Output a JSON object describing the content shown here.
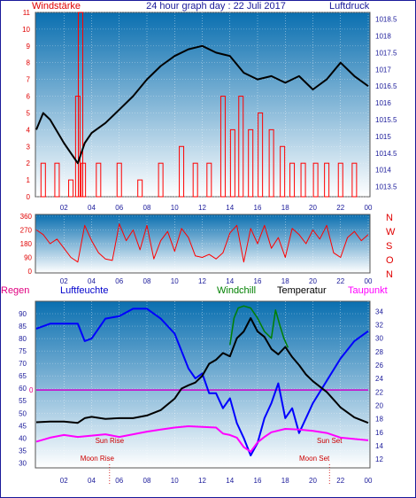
{
  "header": {
    "left_title": "Windstärke",
    "center_title": "24 hour graph day : 22 Juli 2017",
    "right_title": "Luftdruck"
  },
  "colors": {
    "frame": "#1a1a9a",
    "sky_top": "#0a6fb0",
    "sky_bottom": "#ffffff",
    "wind_bars": "#ff0000",
    "gust_bars": "#0000ff",
    "pressure": "#000000",
    "direction": "#ff0000",
    "humidity": "#0000ff",
    "temperature": "#000000",
    "windchill": "#008000",
    "dewpoint": "#ff00ff",
    "zero_line": "#cc00cc"
  },
  "chart_data": [
    {
      "type": "bar",
      "title": "24 hour graph day : 22 Juli 2017",
      "x_ticks": [
        "02",
        "04",
        "06",
        "08",
        "10",
        "12",
        "14",
        "16",
        "18",
        "20",
        "22",
        "00"
      ],
      "left_axis": {
        "label": "Windstärke",
        "ylim": [
          0,
          11
        ],
        "ticks": [
          0,
          1,
          2,
          3,
          4,
          5,
          6,
          7,
          8,
          9,
          10,
          11
        ]
      },
      "right_axis": {
        "label": "Luftdruck",
        "ylim": [
          1013.2,
          1018.7
        ],
        "ticks": [
          1013.5,
          1014,
          1014.5,
          1015,
          1015.5,
          1016,
          1016.5,
          1017,
          1017.5,
          1018,
          1018.5
        ]
      },
      "series": [
        {
          "name": "Windstärke",
          "kind": "bar",
          "hours": [
            0.5,
            1.5,
            2.5,
            3.0,
            3.2,
            3.4,
            4.5,
            6.0,
            7.5,
            9.0,
            10.5,
            11.5,
            12.5,
            13.5,
            14.2,
            14.8,
            15.5,
            16.2,
            17.0,
            17.8,
            18.5,
            19.3,
            20.2,
            21.0,
            22.0,
            23.0
          ],
          "values": [
            2,
            2,
            1,
            6,
            11,
            2,
            2,
            2,
            1,
            2,
            3,
            2,
            2,
            6,
            4,
            6,
            4,
            5,
            4,
            3,
            2,
            2,
            2,
            2,
            2,
            2
          ]
        },
        {
          "name": "Luftdruck",
          "kind": "line",
          "hours": [
            0,
            0.5,
            1,
            2,
            3,
            3.5,
            4,
            5,
            6,
            7,
            8,
            9,
            10,
            11,
            12,
            13,
            14,
            15,
            16,
            17,
            18,
            19,
            20,
            21,
            22,
            23,
            24
          ],
          "values": [
            1015.2,
            1015.7,
            1015.5,
            1014.8,
            1014.2,
            1014.8,
            1015.1,
            1015.4,
            1015.8,
            1016.2,
            1016.7,
            1017.1,
            1017.4,
            1017.6,
            1017.7,
            1017.5,
            1017.4,
            1016.9,
            1016.7,
            1016.8,
            1016.6,
            1016.8,
            1016.4,
            1016.7,
            1017.2,
            1016.8,
            1016.5
          ]
        }
      ]
    },
    {
      "type": "line",
      "x_ticks": [
        "02",
        "04",
        "06",
        "08",
        "10",
        "12",
        "14",
        "16",
        "18",
        "20",
        "22",
        "00"
      ],
      "left_axis": {
        "ylim": [
          0,
          360
        ],
        "ticks": [
          0,
          90,
          180,
          270,
          360
        ]
      },
      "right_axis_labels": [
        "N",
        "W",
        "S",
        "O",
        "N"
      ],
      "series": [
        {
          "name": "Windrichtung",
          "hours": [
            0,
            0.5,
            1,
            1.5,
            2,
            2.5,
            3,
            3.5,
            4,
            4.5,
            5,
            5.5,
            6,
            6.5,
            7,
            7.5,
            8,
            8.5,
            9,
            9.5,
            10,
            10.5,
            11,
            11.5,
            12,
            12.5,
            13,
            13.5,
            14,
            14.5,
            15,
            15.5,
            16,
            16.5,
            17,
            17.5,
            18,
            18.5,
            19,
            19.5,
            20,
            20.5,
            21,
            21.5,
            22,
            22.5,
            23,
            23.5,
            24
          ],
          "values": [
            270,
            240,
            180,
            210,
            150,
            90,
            60,
            300,
            200,
            120,
            80,
            70,
            310,
            200,
            270,
            140,
            300,
            80,
            200,
            260,
            130,
            280,
            220,
            100,
            90,
            110,
            80,
            120,
            250,
            300,
            60,
            280,
            180,
            300,
            150,
            220,
            90,
            280,
            240,
            180,
            270,
            210,
            300,
            120,
            90,
            220,
            260,
            200,
            240
          ]
        }
      ]
    },
    {
      "type": "line",
      "x_ticks": [
        "02",
        "04",
        "06",
        "08",
        "10",
        "12",
        "14",
        "16",
        "18",
        "20",
        "22",
        "00"
      ],
      "left_axis": {
        "label": "Regen",
        "series_label": "Luftfeuchte",
        "ylim": [
          28,
          95
        ],
        "ticks": [
          30,
          35,
          40,
          45,
          50,
          55,
          60,
          65,
          70,
          75,
          80,
          85,
          90
        ],
        "zero_label": "0"
      },
      "right_axis": {
        "ylim": [
          10.7,
          35.5
        ],
        "ticks": [
          12,
          14,
          16,
          18,
          20,
          22,
          24,
          26,
          28,
          30,
          32,
          34
        ]
      },
      "annotations": [
        {
          "text": "Sun Rise",
          "hour": 5.3
        },
        {
          "text": "Sun Set",
          "hour": 21.2
        },
        {
          "text": "Moon Rise",
          "hour": 5.3
        },
        {
          "text": "Moon Set",
          "hour": 21.0
        }
      ],
      "series": [
        {
          "name": "Luftfeuchte",
          "axis": "left",
          "hours": [
            0,
            1,
            2,
            3,
            3.5,
            4,
            5,
            6,
            7,
            8,
            9,
            10,
            10.5,
            11,
            11.5,
            12,
            12.5,
            13,
            13.5,
            14,
            14.5,
            15,
            15.5,
            16,
            16.5,
            17,
            17.5,
            18,
            18.5,
            19,
            19.5,
            20,
            21,
            22,
            23,
            24
          ],
          "values": [
            84,
            86,
            86,
            86,
            79,
            80,
            88,
            89,
            92,
            92,
            88,
            82,
            75,
            68,
            64,
            66,
            58,
            58,
            52,
            56,
            46,
            40,
            33,
            38,
            48,
            54,
            62,
            48,
            52,
            42,
            48,
            54,
            63,
            72,
            79,
            83
          ]
        },
        {
          "name": "Temperatur",
          "axis": "right",
          "hours": [
            0,
            1,
            2,
            3,
            3.5,
            4,
            5,
            6,
            7,
            8,
            9,
            10,
            10.5,
            11,
            11.5,
            12,
            12.5,
            13,
            13.5,
            14,
            14.5,
            15,
            15.5,
            16,
            16.5,
            17,
            17.5,
            18,
            18.5,
            19,
            19.5,
            20,
            21,
            22,
            23,
            24
          ],
          "values": [
            17.5,
            17.6,
            17.6,
            17.4,
            18.1,
            18.3,
            18.0,
            18.1,
            18.1,
            18.5,
            19.3,
            21.0,
            22.5,
            23.0,
            23.4,
            24.4,
            26.2,
            26.8,
            27.8,
            27.3,
            30.0,
            31.0,
            33.0,
            31.0,
            30.2,
            28.4,
            27.6,
            28.7,
            27.2,
            26.0,
            24.6,
            23.6,
            22.0,
            19.7,
            18.2,
            17.4
          ]
        },
        {
          "name": "Windchill",
          "axis": "right",
          "hours": [
            14.0,
            14.3,
            14.6,
            15.0,
            15.5,
            16.0,
            16.5,
            17.0,
            17.3,
            17.6,
            17.9,
            18.2
          ],
          "values": [
            29.0,
            33.0,
            34.5,
            34.8,
            34.5,
            33.0,
            31.0,
            30.0,
            34.2,
            32.0,
            30.0,
            28.6
          ]
        },
        {
          "name": "Taupunkt",
          "axis": "right",
          "hours": [
            0,
            1,
            2,
            3,
            4,
            5,
            6,
            7,
            8,
            9,
            10,
            11,
            12,
            13,
            13.5,
            14,
            14.5,
            15,
            15.5,
            16,
            16.5,
            17,
            18,
            19,
            20,
            21,
            22,
            23,
            24
          ],
          "values": [
            14.6,
            15.2,
            15.6,
            15.3,
            15.5,
            15.7,
            15.3,
            15.7,
            16.1,
            16.4,
            16.7,
            16.9,
            16.8,
            16.7,
            15.8,
            15.6,
            15.2,
            13.8,
            13.1,
            14.5,
            15.3,
            16.0,
            16.5,
            16.4,
            16.2,
            15.9,
            15.2,
            15.0,
            14.8
          ]
        }
      ]
    }
  ],
  "panel3_header": {
    "regen": "Regen",
    "luftfeuchte": "Luftfeuchte",
    "windchill": "Windchill",
    "temperatur": "Temperatur",
    "taupunkt": "Taupunkt"
  }
}
